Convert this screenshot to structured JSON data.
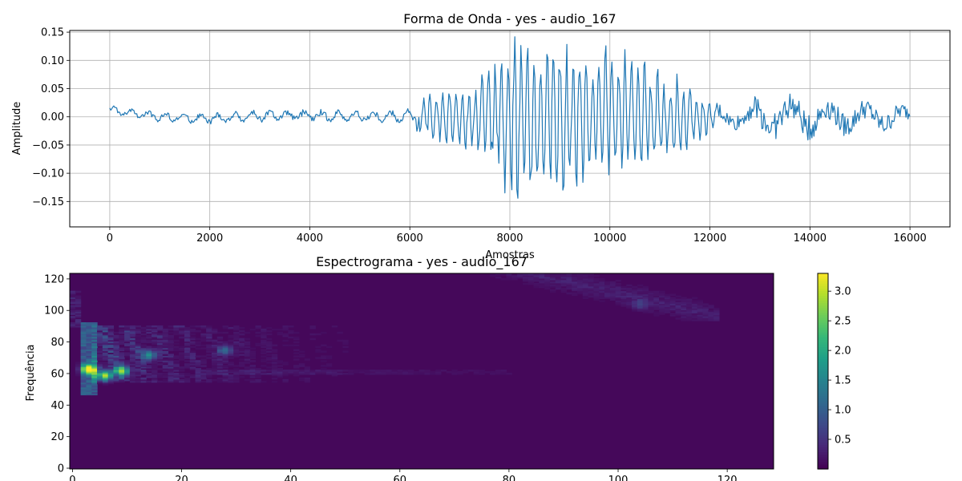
{
  "chart_data": [
    {
      "type": "line",
      "title": "Forma de Onda - yes - audio_167",
      "xlabel": "Amostras",
      "ylabel": "Amplitude",
      "xlim": [
        -800,
        16800
      ],
      "ylim": [
        -0.195,
        0.153
      ],
      "xticks": [
        0,
        2000,
        4000,
        6000,
        8000,
        10000,
        12000,
        14000,
        16000
      ],
      "xtick_labels": [
        "0",
        "2000",
        "4000",
        "6000",
        "8000",
        "10000",
        "12000",
        "14000",
        "16000"
      ],
      "yticks": [
        -0.15,
        -0.1,
        -0.05,
        0.0,
        0.05,
        0.1,
        0.15
      ],
      "ytick_labels": [
        "−0.15",
        "−0.10",
        "−0.05",
        "0.00",
        "0.05",
        "0.10",
        "0.15"
      ],
      "grid": true,
      "color": "#1f77b4",
      "series": [
        {
          "envelope_x": [
            0,
            500,
            1000,
            1500,
            2000,
            2500,
            3000,
            3500,
            4000,
            4500,
            5000,
            5500,
            6000,
            6200,
            6500,
            7000,
            7500,
            7800,
            8000,
            8300,
            8700,
            9000,
            9300,
            9600,
            10000,
            10300,
            10600,
            11000,
            11500,
            12000,
            12300,
            12700,
            13000,
            13500,
            14000,
            14500,
            15000,
            15500,
            16000
          ],
          "envelope_amp": [
            0.011,
            0.008,
            0.01,
            0.01,
            0.011,
            0.011,
            0.012,
            0.01,
            0.012,
            0.012,
            0.012,
            0.012,
            0.015,
            0.035,
            0.045,
            0.055,
            0.085,
            0.11,
            0.155,
            0.145,
            0.13,
            0.135,
            0.125,
            0.12,
            0.115,
            0.11,
            0.095,
            0.08,
            0.06,
            0.03,
            0.02,
            0.025,
            0.04,
            0.04,
            0.04,
            0.035,
            0.03,
            0.03,
            0.02
          ],
          "offset_x": [
            0,
            100,
            1000,
            2000,
            3000,
            4000,
            5000,
            6000,
            16000
          ],
          "offset_y": [
            0.012,
            0.01,
            0.0,
            -0.004,
            0.002,
            0.002,
            0.001,
            0.0,
            0.0
          ]
        }
      ]
    },
    {
      "type": "heatmap",
      "title": "Espectrograma - yes - audio_167",
      "xlabel": "",
      "ylabel": "Frequência",
      "xlim": [
        -0.5,
        128.5
      ],
      "ylim": [
        -0.5,
        123.5
      ],
      "xticks": [
        0,
        20,
        40,
        60,
        80,
        100,
        120
      ],
      "xtick_labels": [
        "0",
        "20",
        "40",
        "60",
        "80",
        "100",
        "120"
      ],
      "yticks": [
        0,
        20,
        40,
        60,
        80,
        100,
        120
      ],
      "ytick_labels": [
        "0",
        "20",
        "40",
        "60",
        "80",
        "100",
        "120"
      ],
      "colormap": "viridis",
      "colorbar": {
        "min": 0.0,
        "max": 3.3,
        "ticks": [
          0.5,
          1.0,
          1.5,
          2.0,
          2.5,
          3.0
        ],
        "tick_labels": [
          "0.5",
          "1.0",
          "1.5",
          "2.0",
          "2.5",
          "3.0"
        ]
      },
      "features": [
        {
          "x": 3,
          "y": 63,
          "value": 3.3
        },
        {
          "x": 6,
          "y": 59,
          "value": 3.1
        },
        {
          "x": 9,
          "y": 62,
          "value": 3.0
        },
        {
          "x": 14,
          "y": 72,
          "value": 1.9
        },
        {
          "x": 28,
          "y": 75,
          "value": 1.4
        },
        {
          "x": 104,
          "y": 104,
          "value": 0.9
        }
      ]
    }
  ]
}
